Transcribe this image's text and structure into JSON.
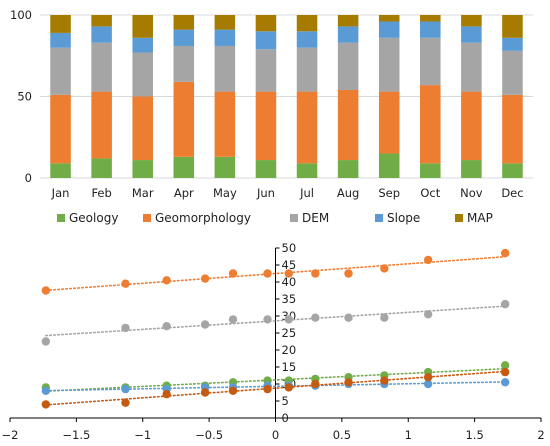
{
  "colors": {
    "Geology": "#70ad47",
    "Geomorphology": "#ed7d31",
    "DEM": "#a5a5a5",
    "Slope": "#5b9bd5",
    "MAP": "#a67c00",
    "red_series": "#c55a11",
    "axis": "#000000",
    "grid": "#d9d9d9"
  },
  "chart_data": [
    {
      "type": "bar",
      "stacked": true,
      "title": "",
      "xlabel": "",
      "ylabel": "",
      "ylim": [
        0,
        100
      ],
      "yticks": [
        "0",
        "50",
        "100"
      ],
      "grid": true,
      "legend_position": "bottom",
      "categories": [
        "Jan",
        "Feb",
        "Mar",
        "Apr",
        "May",
        "Jun",
        "Jul",
        "Aug",
        "Sep",
        "Oct",
        "Nov",
        "Dec"
      ],
      "series": [
        {
          "name": "Geology",
          "values": [
            9,
            12,
            11,
            13,
            13,
            11,
            9,
            11,
            15,
            9,
            11,
            9
          ]
        },
        {
          "name": "Geomorphology",
          "values": [
            42,
            41,
            39,
            46,
            40,
            42,
            44,
            43,
            38,
            48,
            42,
            42
          ]
        },
        {
          "name": "DEM",
          "values": [
            29,
            30,
            27,
            22,
            28,
            26,
            27,
            29,
            33,
            29,
            30,
            27
          ]
        },
        {
          "name": "Slope",
          "values": [
            9,
            10,
            9,
            10,
            10,
            11,
            10,
            10,
            10,
            10,
            10,
            8
          ]
        },
        {
          "name": "MAP",
          "values": [
            11,
            7,
            14,
            9,
            9,
            10,
            10,
            7,
            4,
            4,
            7,
            14
          ]
        }
      ]
    },
    {
      "type": "scatter",
      "title": "",
      "xlabel": "",
      "ylabel": "",
      "xlim": [
        -2,
        2
      ],
      "ylim": [
        0,
        50
      ],
      "xticks": [
        -2,
        -1.5,
        -1,
        -0.5,
        0,
        0.5,
        1,
        1.5,
        2
      ],
      "xtick_labels": [
        "−2",
        "−1.5",
        "−1",
        "−0.5",
        "0",
        "0.5",
        "1",
        "1.5",
        "2"
      ],
      "yticks": [
        0,
        5,
        10,
        15,
        20,
        25,
        30,
        35,
        40,
        45,
        50
      ],
      "ytick_labels": [
        "0",
        "5",
        "10",
        "15",
        "20",
        "25",
        "30",
        "35",
        "40",
        "45",
        "50"
      ],
      "grid": false,
      "trendlines": "linear, dotted",
      "series": [
        {
          "color_key": "Geomorphology",
          "x": [
            -1.73,
            -1.13,
            -0.82,
            -0.53,
            -0.32,
            -0.06,
            0.1,
            0.3,
            0.55,
            0.82,
            1.15,
            1.73
          ],
          "y": [
            37.5,
            39.5,
            40.5,
            41,
            42.5,
            42.5,
            42.5,
            42.5,
            42.5,
            44,
            46.5,
            48.5
          ]
        },
        {
          "color_key": "DEM",
          "x": [
            -1.73,
            -1.13,
            -0.82,
            -0.53,
            -0.32,
            -0.06,
            0.1,
            0.3,
            0.55,
            0.82,
            1.15,
            1.73
          ],
          "y": [
            22.5,
            26.5,
            27,
            27.5,
            29,
            29,
            29,
            29.5,
            29.5,
            29.5,
            30.5,
            33.5
          ]
        },
        {
          "color_key": "Geology",
          "x": [
            -1.73,
            -1.13,
            -0.82,
            -0.53,
            -0.32,
            -0.06,
            0.1,
            0.3,
            0.55,
            0.82,
            1.15,
            1.73
          ],
          "y": [
            9,
            9,
            9.5,
            9.5,
            10.5,
            11,
            11,
            11.5,
            12,
            12.5,
            13.5,
            15.5
          ]
        },
        {
          "color_key": "Slope",
          "x": [
            -1.73,
            -1.13,
            -0.82,
            -0.53,
            -0.32,
            -0.06,
            0.1,
            0.3,
            0.55,
            0.82,
            1.15,
            1.73
          ],
          "y": [
            8,
            8.5,
            8.5,
            9,
            9,
            9.5,
            9.5,
            9.5,
            10,
            10,
            10,
            10.5
          ]
        },
        {
          "color_key": "red_series",
          "x": [
            -1.73,
            -1.13,
            -0.82,
            -0.53,
            -0.32,
            -0.06,
            0.1,
            0.3,
            0.55,
            0.82,
            1.15,
            1.73
          ],
          "y": [
            4,
            4.5,
            7,
            7.5,
            8,
            8.5,
            9,
            10,
            10.5,
            11,
            12,
            13.5
          ]
        }
      ]
    }
  ]
}
